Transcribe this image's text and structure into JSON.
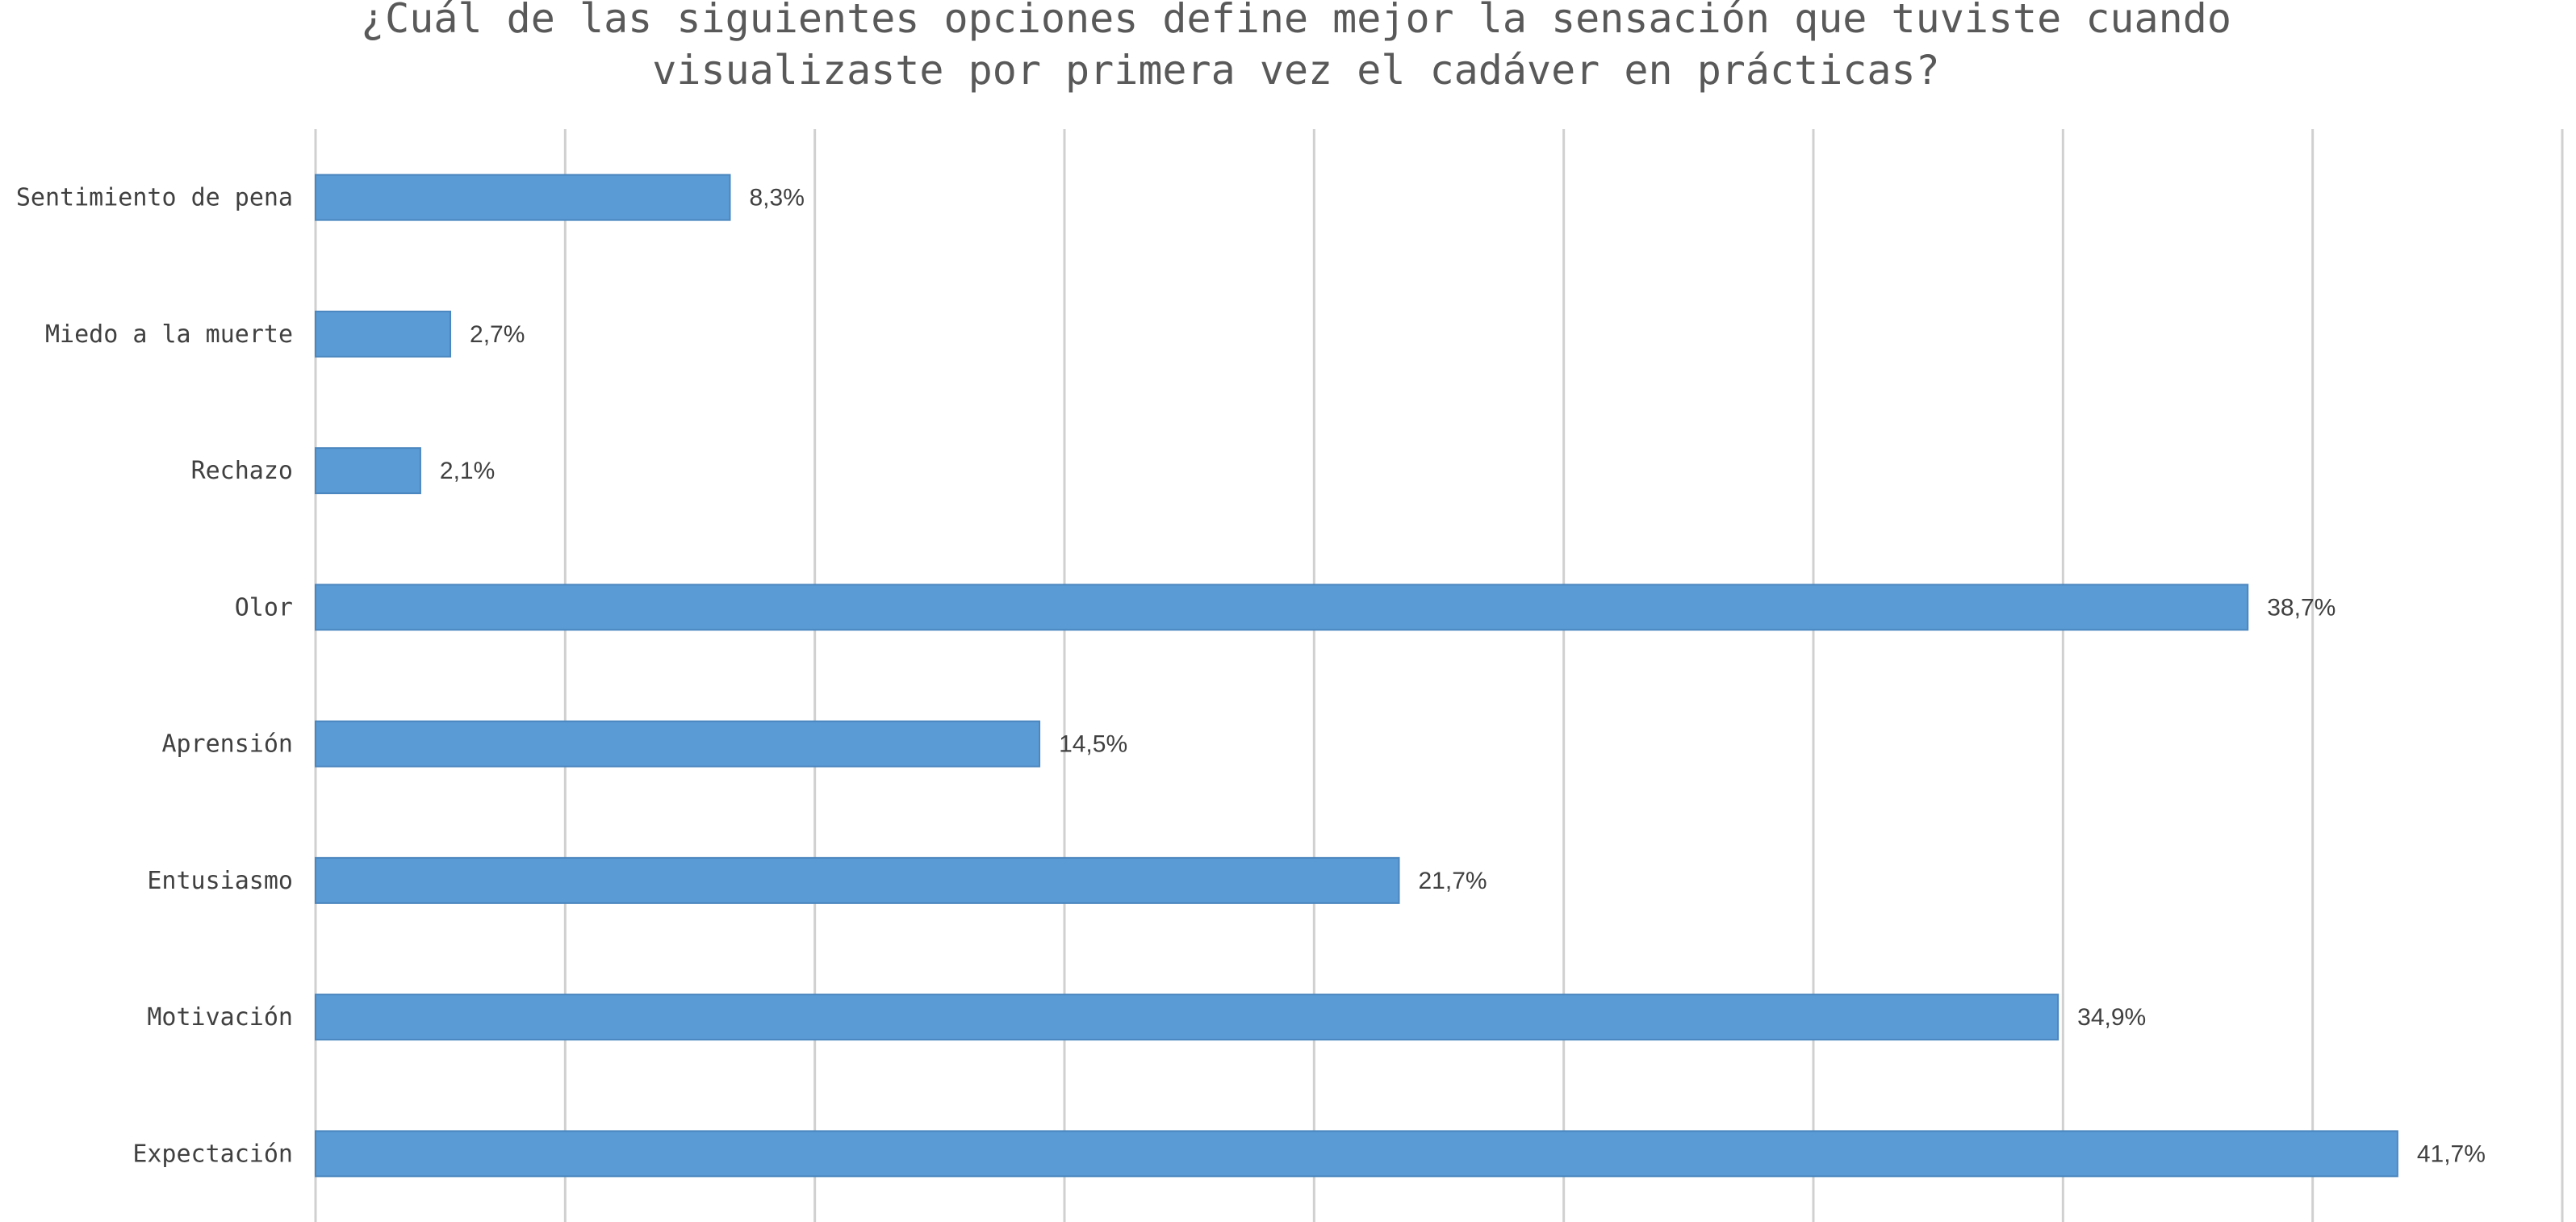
{
  "chart_data": {
    "type": "bar",
    "orientation": "horizontal",
    "title_lines": [
      "¿Cuál de las siguientes opciones define mejor la sensación que tuviste cuando",
      "visualizaste por primera vez el cadáver en prácticas?"
    ],
    "categories": [
      "Sentimiento de pena",
      "Miedo a la muerte",
      "Rechazo",
      "Olor",
      "Aprensión",
      "Entusiasmo",
      "Motivación",
      "Expectación"
    ],
    "values": [
      8.3,
      2.7,
      2.1,
      38.7,
      14.5,
      21.7,
      34.9,
      41.7
    ],
    "value_labels": [
      "8,3%",
      "2,7%",
      "2,1%",
      "38,7%",
      "14,5%",
      "21,7%",
      "34,9%",
      "41,7%"
    ],
    "xlim": [
      0,
      45
    ],
    "grid_step": 5,
    "grid": true,
    "bar_color": "#5b9bd5",
    "legend": "none"
  }
}
